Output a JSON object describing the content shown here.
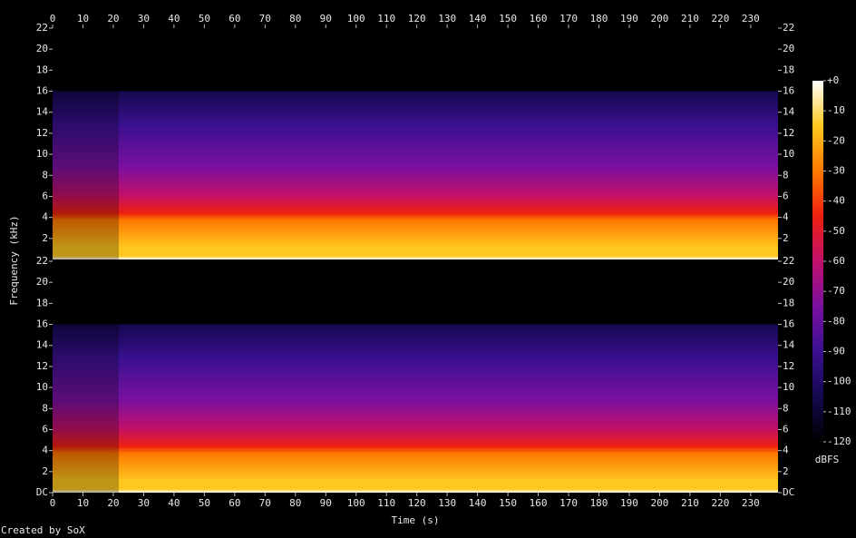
{
  "chart_data": {
    "type": "spectrogram",
    "xlabel": "Time (s)",
    "ylabel": "Frequency (kHz)",
    "xlim": [
      0,
      239
    ],
    "xticks": [
      0,
      10,
      20,
      30,
      40,
      50,
      60,
      70,
      80,
      90,
      100,
      110,
      120,
      130,
      140,
      150,
      160,
      170,
      180,
      190,
      200,
      210,
      220,
      230
    ],
    "ylim": [
      0,
      22
    ],
    "channels": [
      {
        "yticks": [
          2,
          4,
          6,
          8,
          10,
          12,
          14,
          16,
          18,
          20,
          22
        ]
      },
      {
        "yticks": [
          {
            "value": 0,
            "label": "DC"
          },
          2,
          4,
          6,
          8,
          10,
          12,
          14,
          16,
          18,
          20,
          22
        ]
      }
    ],
    "clim": [
      -120,
      0
    ],
    "cticks": [
      {
        "value": 0,
        "label": "+0"
      },
      -10,
      -20,
      -30,
      -40,
      -50,
      -60,
      -70,
      -80,
      -90,
      -100,
      -110,
      -120
    ],
    "clabel": "dBFS",
    "colormap": [
      "#000000",
      "#14084f",
      "#3a1090",
      "#7a10a0",
      "#c0106a",
      "#ee2010",
      "#ff7800",
      "#ffc820",
      "#ffffff"
    ],
    "caption": "Created by SoX"
  }
}
